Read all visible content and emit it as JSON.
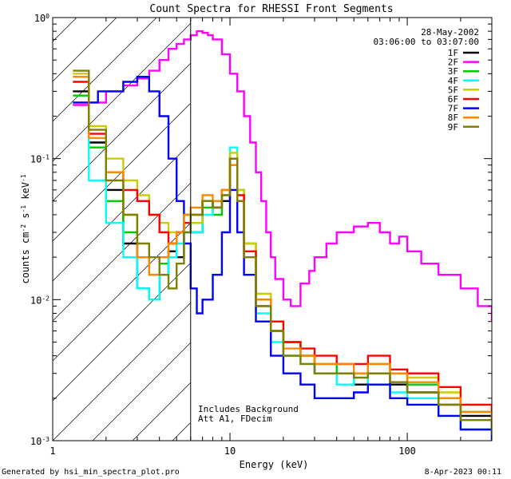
{
  "chart_data": {
    "type": "line",
    "title": "Count Spectra for RHESSI Front Segments",
    "xlabel": "Energy (keV)",
    "ylabel_parts": {
      "base": "counts cm",
      "exp1": "-2",
      "mid1": " s",
      "exp2": "-1",
      "mid2": " keV",
      "exp3": "-1"
    },
    "xscale": "log",
    "yscale": "log",
    "xlim": [
      1.0,
      300.0
    ],
    "ylim": [
      0.001,
      1.0
    ],
    "x_ticks": [
      {
        "value": 1,
        "label": "1"
      },
      {
        "value": 10,
        "label": "10"
      },
      {
        "value": 100,
        "label": "100"
      }
    ],
    "y_ticks": [
      {
        "value": 1.0,
        "base": "10",
        "exp": "0"
      },
      {
        "value": 0.1,
        "base": "10",
        "exp": "-1"
      },
      {
        "value": 0.01,
        "base": "10",
        "exp": "-2"
      },
      {
        "value": 0.001,
        "base": "10",
        "exp": "-3"
      }
    ],
    "date_label": "28-May-2002",
    "time_range_label": "03:06:00 to 03:07:00",
    "legend_position": "top-right",
    "annotations": [
      "Includes Background",
      "Att A1, FDecim"
    ],
    "attenuator_cutoff_kev": 6.0,
    "hatched_region_kev": [
      1.0,
      6.0
    ],
    "series": [
      {
        "name": "1F",
        "color": "#000000",
        "x": [
          1.3,
          1.6,
          2.0,
          2.5,
          3.0,
          3.5,
          4.0,
          4.5,
          5.0,
          5.5,
          6.0,
          7.0,
          8.0,
          9.0,
          10.0,
          11.0,
          12.0,
          14.0,
          17.0,
          20.0,
          25.0,
          30.0,
          40.0,
          50.0,
          60.0,
          80.0,
          100.0,
          150.0,
          200.0,
          300.0
        ],
        "y": [
          0.3,
          0.13,
          0.06,
          0.025,
          0.012,
          0.01,
          0.015,
          0.022,
          0.02,
          0.035,
          0.03,
          0.05,
          0.045,
          0.05,
          0.1,
          0.05,
          0.02,
          0.009,
          0.006,
          0.005,
          0.004,
          0.003,
          0.003,
          0.0025,
          0.003,
          0.0025,
          0.0022,
          0.0018,
          0.0015,
          0.0012
        ]
      },
      {
        "name": "2F",
        "color": "#ff00ff",
        "x": [
          1.3,
          1.6,
          2.0,
          2.5,
          3.0,
          3.5,
          4.0,
          4.5,
          5.0,
          5.5,
          6.0,
          6.5,
          7.0,
          7.5,
          8.0,
          9.0,
          10.0,
          11.0,
          12.0,
          13.0,
          14.0,
          15.0,
          16.0,
          17.0,
          18.0,
          20.0,
          22.0,
          25.0,
          28.0,
          30.0,
          35.0,
          40.0,
          50.0,
          60.0,
          70.0,
          80.0,
          90.0,
          100.0,
          120.0,
          150.0,
          200.0,
          250.0,
          300.0
        ],
        "y": [
          0.24,
          0.25,
          0.3,
          0.33,
          0.37,
          0.42,
          0.5,
          0.6,
          0.65,
          0.7,
          0.75,
          0.8,
          0.78,
          0.75,
          0.7,
          0.55,
          0.4,
          0.3,
          0.2,
          0.13,
          0.08,
          0.05,
          0.03,
          0.02,
          0.014,
          0.01,
          0.009,
          0.013,
          0.016,
          0.02,
          0.025,
          0.03,
          0.033,
          0.035,
          0.03,
          0.025,
          0.028,
          0.022,
          0.018,
          0.015,
          0.012,
          0.009,
          0.007
        ]
      },
      {
        "name": "3F",
        "color": "#00cc00",
        "x": [
          1.3,
          1.6,
          2.0,
          2.5,
          3.0,
          3.5,
          4.0,
          4.5,
          5.0,
          5.5,
          6.0,
          7.0,
          8.0,
          9.0,
          10.0,
          11.0,
          12.0,
          14.0,
          17.0,
          20.0,
          25.0,
          30.0,
          40.0,
          50.0,
          60.0,
          80.0,
          100.0,
          150.0,
          200.0,
          300.0
        ],
        "y": [
          0.28,
          0.12,
          0.05,
          0.03,
          0.02,
          0.015,
          0.018,
          0.025,
          0.03,
          0.04,
          0.035,
          0.045,
          0.04,
          0.055,
          0.09,
          0.06,
          0.025,
          0.01,
          0.006,
          0.004,
          0.004,
          0.0035,
          0.003,
          0.003,
          0.0035,
          0.003,
          0.0025,
          0.002,
          0.0016,
          0.0012
        ]
      },
      {
        "name": "4F",
        "color": "#00ffff",
        "x": [
          1.3,
          1.6,
          2.0,
          2.5,
          3.0,
          3.5,
          4.0,
          4.5,
          5.0,
          5.5,
          6.0,
          7.0,
          8.0,
          9.0,
          10.0,
          11.0,
          12.0,
          14.0,
          17.0,
          20.0,
          25.0,
          30.0,
          40.0,
          50.0,
          60.0,
          80.0,
          100.0,
          150.0,
          200.0,
          300.0
        ],
        "y": [
          0.25,
          0.07,
          0.035,
          0.02,
          0.012,
          0.01,
          0.015,
          0.02,
          0.025,
          0.03,
          0.03,
          0.04,
          0.045,
          0.06,
          0.12,
          0.05,
          0.02,
          0.008,
          0.005,
          0.004,
          0.0035,
          0.003,
          0.0025,
          0.003,
          0.0025,
          0.0022,
          0.002,
          0.0015,
          0.0012,
          0.001
        ]
      },
      {
        "name": "5F",
        "color": "#cccc00",
        "x": [
          1.3,
          1.6,
          2.0,
          2.5,
          3.0,
          3.5,
          4.0,
          4.5,
          5.0,
          5.5,
          6.0,
          7.0,
          8.0,
          9.0,
          10.0,
          11.0,
          12.0,
          14.0,
          17.0,
          20.0,
          25.0,
          30.0,
          40.0,
          50.0,
          60.0,
          80.0,
          100.0,
          150.0,
          200.0,
          300.0
        ],
        "y": [
          0.4,
          0.17,
          0.1,
          0.07,
          0.055,
          0.04,
          0.035,
          0.03,
          0.03,
          0.035,
          0.035,
          0.05,
          0.05,
          0.055,
          0.11,
          0.06,
          0.025,
          0.011,
          0.007,
          0.005,
          0.004,
          0.0035,
          0.0035,
          0.003,
          0.0035,
          0.003,
          0.0028,
          0.0022,
          0.0018,
          0.0014
        ]
      },
      {
        "name": "6F",
        "color": "#ff0000",
        "x": [
          1.3,
          1.6,
          2.0,
          2.5,
          3.0,
          3.5,
          4.0,
          4.5,
          5.0,
          5.5,
          6.0,
          7.0,
          8.0,
          9.0,
          10.0,
          11.0,
          12.0,
          14.0,
          17.0,
          20.0,
          25.0,
          30.0,
          40.0,
          50.0,
          60.0,
          80.0,
          100.0,
          150.0,
          200.0,
          300.0
        ],
        "y": [
          0.35,
          0.15,
          0.08,
          0.06,
          0.05,
          0.04,
          0.03,
          0.025,
          0.03,
          0.035,
          0.04,
          0.05,
          0.045,
          0.06,
          0.1,
          0.055,
          0.022,
          0.01,
          0.007,
          0.005,
          0.0045,
          0.004,
          0.0035,
          0.0035,
          0.004,
          0.0032,
          0.003,
          0.0024,
          0.0018,
          0.0013
        ]
      },
      {
        "name": "7F",
        "color": "#0000ff",
        "x": [
          1.3,
          1.6,
          1.8,
          2.0,
          2.5,
          3.0,
          3.5,
          4.0,
          4.5,
          5.0,
          5.5,
          6.0,
          6.5,
          7.0,
          8.0,
          9.0,
          10.0,
          11.0,
          12.0,
          14.0,
          17.0,
          20.0,
          25.0,
          30.0,
          40.0,
          50.0,
          60.0,
          80.0,
          100.0,
          150.0,
          200.0,
          300.0
        ],
        "y": [
          0.25,
          0.25,
          0.3,
          0.3,
          0.35,
          0.38,
          0.3,
          0.2,
          0.1,
          0.05,
          0.025,
          0.012,
          0.008,
          0.01,
          0.015,
          0.03,
          0.06,
          0.03,
          0.015,
          0.007,
          0.004,
          0.003,
          0.0025,
          0.002,
          0.002,
          0.0022,
          0.0025,
          0.002,
          0.0018,
          0.0015,
          0.0012,
          0.001
        ]
      },
      {
        "name": "8F",
        "color": "#ff8800",
        "x": [
          1.3,
          1.6,
          2.0,
          2.5,
          3.0,
          3.5,
          4.0,
          4.5,
          5.0,
          5.5,
          6.0,
          7.0,
          8.0,
          9.0,
          10.0,
          11.0,
          12.0,
          14.0,
          17.0,
          20.0,
          25.0,
          30.0,
          40.0,
          50.0,
          60.0,
          80.0,
          100.0,
          150.0,
          200.0,
          300.0
        ],
        "y": [
          0.38,
          0.14,
          0.08,
          0.04,
          0.02,
          0.015,
          0.02,
          0.025,
          0.03,
          0.04,
          0.045,
          0.055,
          0.05,
          0.06,
          0.09,
          0.05,
          0.02,
          0.01,
          0.006,
          0.0045,
          0.004,
          0.0035,
          0.0035,
          0.003,
          0.0035,
          0.003,
          0.0026,
          0.002,
          0.0016,
          0.0012
        ]
      },
      {
        "name": "9F",
        "color": "#808000",
        "x": [
          1.3,
          1.6,
          2.0,
          2.5,
          3.0,
          3.5,
          4.0,
          4.5,
          5.0,
          5.5,
          6.0,
          7.0,
          8.0,
          9.0,
          10.0,
          11.0,
          12.0,
          14.0,
          17.0,
          20.0,
          25.0,
          30.0,
          40.0,
          50.0,
          60.0,
          80.0,
          100.0,
          150.0,
          200.0,
          300.0
        ],
        "y": [
          0.42,
          0.16,
          0.07,
          0.04,
          0.025,
          0.02,
          0.015,
          0.012,
          0.018,
          0.03,
          0.04,
          0.05,
          0.045,
          0.055,
          0.1,
          0.05,
          0.02,
          0.009,
          0.006,
          0.004,
          0.0035,
          0.003,
          0.003,
          0.0028,
          0.003,
          0.0026,
          0.0022,
          0.0018,
          0.0014,
          0.0011
        ]
      }
    ]
  },
  "footer": {
    "generated_by": "Generated by hsi_min_spectra_plot.pro",
    "timestamp": "8-Apr-2023 00:11"
  }
}
